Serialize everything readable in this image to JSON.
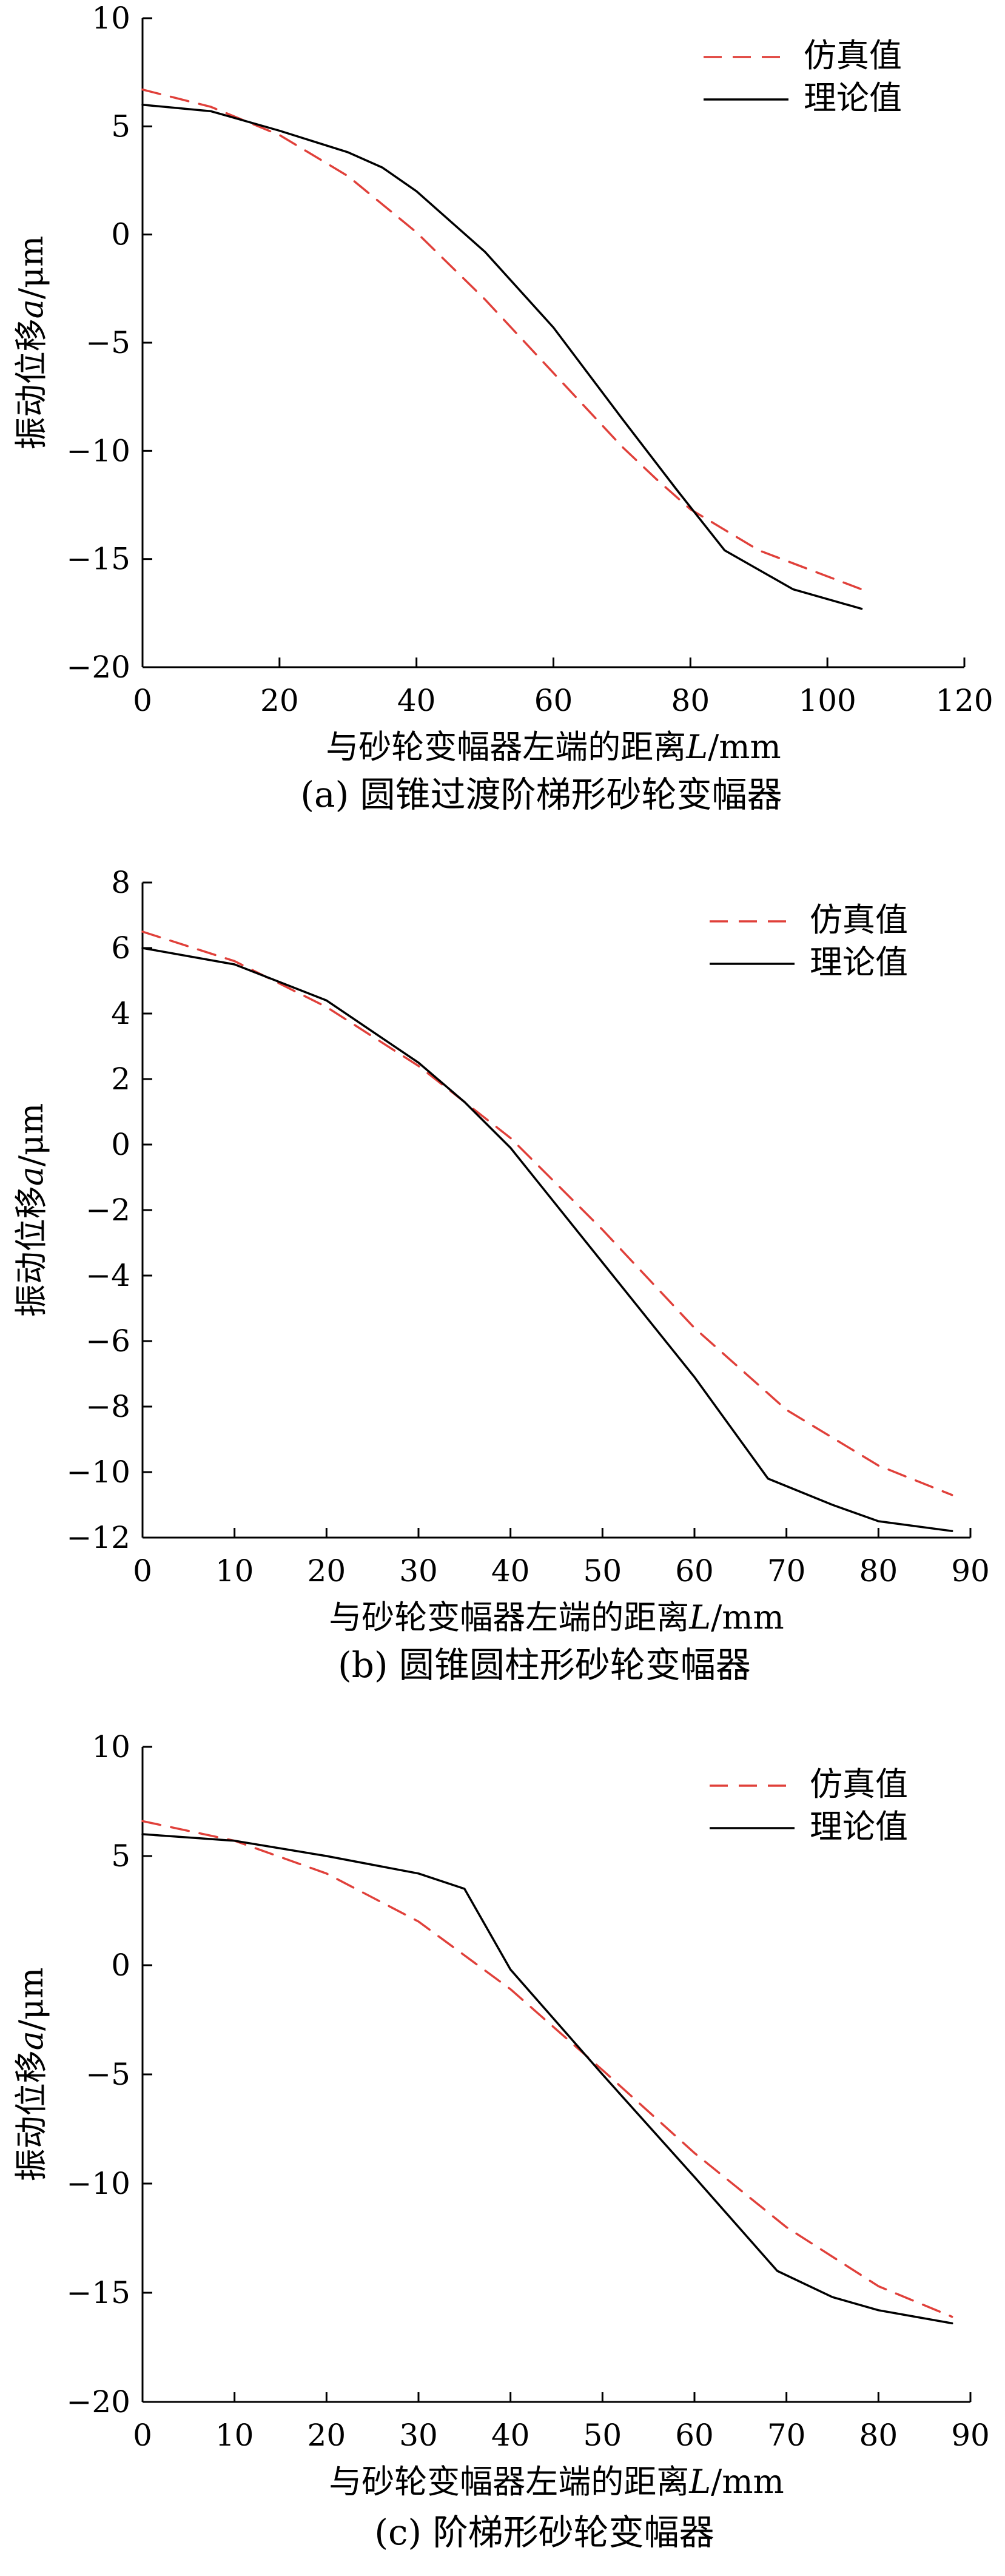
{
  "chart_data": [
    {
      "type": "line",
      "caption": "(a)  圆锥过渡阶梯形砂轮变幅器",
      "xlabel_prefix": "与砂轮变幅器左端的距离",
      "xlabel_var": "L",
      "xlabel_unit": "/mm",
      "ylabel_prefix": "振动位移",
      "ylabel_var": "a",
      "ylabel_unit": "/μm",
      "xlim": [
        0,
        120
      ],
      "ylim": [
        -20,
        10
      ],
      "xticks": [
        0,
        20,
        40,
        60,
        80,
        100,
        120
      ],
      "yticks": [
        -20,
        -15,
        -10,
        -5,
        0,
        5,
        10
      ],
      "grid": false,
      "legend": "top-right",
      "series": [
        {
          "name": "仿真值",
          "style": "dashed",
          "color": "#e0403a",
          "x": [
            0,
            10,
            20,
            30,
            40,
            50,
            60,
            70,
            75,
            80,
            90,
            100,
            105
          ],
          "y": [
            6.7,
            5.9,
            4.6,
            2.7,
            0.1,
            -3.0,
            -6.4,
            -9.8,
            -11.3,
            -12.7,
            -14.6,
            -15.8,
            -16.4
          ]
        },
        {
          "name": "理论值",
          "style": "solid",
          "color": "#000000",
          "x": [
            0,
            10,
            20,
            30,
            35,
            40,
            50,
            60,
            70,
            78,
            85,
            95,
            105
          ],
          "y": [
            6.0,
            5.7,
            4.8,
            3.8,
            3.1,
            2.0,
            -0.8,
            -4.3,
            -8.5,
            -11.8,
            -14.6,
            -16.4,
            -17.3
          ]
        }
      ]
    },
    {
      "type": "line",
      "caption": "(b)  圆锥圆柱形砂轮变幅器",
      "xlabel_prefix": "与砂轮变幅器左端的距离",
      "xlabel_var": "L",
      "xlabel_unit": "/mm",
      "ylabel_prefix": "振动位移",
      "ylabel_var": "a",
      "ylabel_unit": "/μm",
      "xlim": [
        0,
        90
      ],
      "ylim": [
        -12,
        8
      ],
      "xticks": [
        0,
        10,
        20,
        30,
        40,
        50,
        60,
        70,
        80,
        90
      ],
      "yticks": [
        -12,
        -10,
        -8,
        -6,
        -4,
        -2,
        0,
        2,
        4,
        6,
        8
      ],
      "grid": false,
      "legend": "top-right",
      "series": [
        {
          "name": "仿真值",
          "style": "dashed",
          "color": "#e0403a",
          "x": [
            0,
            10,
            20,
            30,
            40,
            50,
            60,
            70,
            80,
            88
          ],
          "y": [
            6.5,
            5.6,
            4.2,
            2.4,
            0.2,
            -2.6,
            -5.6,
            -8.1,
            -9.8,
            -10.7
          ]
        },
        {
          "name": "理论值",
          "style": "solid",
          "color": "#000000",
          "x": [
            0,
            10,
            20,
            30,
            35,
            40,
            50,
            60,
            68,
            75,
            80,
            88
          ],
          "y": [
            6.0,
            5.5,
            4.4,
            2.5,
            1.3,
            -0.1,
            -3.6,
            -7.1,
            -10.2,
            -11.0,
            -11.5,
            -11.8
          ]
        }
      ]
    },
    {
      "type": "line",
      "caption": "(c)  阶梯形砂轮变幅器",
      "xlabel_prefix": "与砂轮变幅器左端的距离",
      "xlabel_var": "L",
      "xlabel_unit": "/mm",
      "ylabel_prefix": "振动位移",
      "ylabel_var": "a",
      "ylabel_unit": "/μm",
      "xlim": [
        0,
        90
      ],
      "ylim": [
        -20,
        10
      ],
      "xticks": [
        0,
        10,
        20,
        30,
        40,
        50,
        60,
        70,
        80,
        90
      ],
      "yticks": [
        -20,
        -15,
        -10,
        -5,
        0,
        5,
        10
      ],
      "grid": false,
      "legend": "top-right",
      "series": [
        {
          "name": "仿真值",
          "style": "dashed",
          "color": "#e0403a",
          "x": [
            0,
            10,
            20,
            30,
            40,
            50,
            60,
            70,
            80,
            88
          ],
          "y": [
            6.6,
            5.7,
            4.2,
            2.0,
            -1.1,
            -4.8,
            -8.6,
            -12.0,
            -14.7,
            -16.1
          ]
        },
        {
          "name": "理论值",
          "style": "solid",
          "color": "#000000",
          "x": [
            0,
            10,
            20,
            30,
            35,
            40,
            50,
            60,
            69,
            75,
            80,
            88
          ],
          "y": [
            6.0,
            5.7,
            5.0,
            4.2,
            3.5,
            -0.2,
            -5.0,
            -9.7,
            -14.0,
            -15.2,
            -15.8,
            -16.4
          ]
        }
      ]
    }
  ]
}
